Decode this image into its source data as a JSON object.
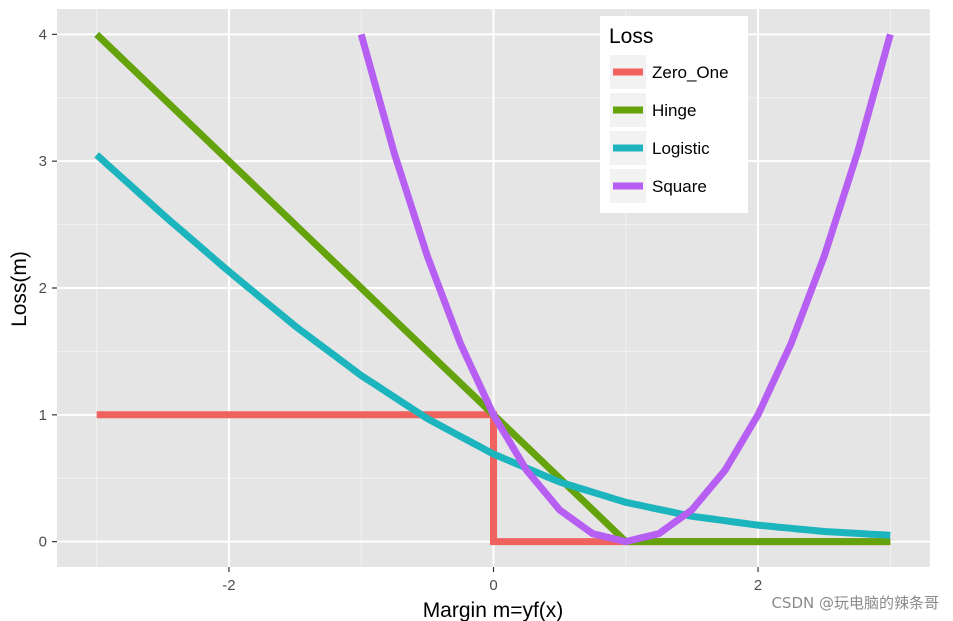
{
  "chart_data": {
    "type": "line",
    "xlabel": "Margin m=yf(x)",
    "ylabel": "Loss(m)",
    "xlim": [
      -3.3,
      3.3
    ],
    "ylim": [
      -0.2,
      4.2
    ],
    "x_ticks": [
      -2,
      0,
      2
    ],
    "x_tick_labels": [
      "-2",
      "0",
      "2"
    ],
    "y_ticks": [
      0,
      1,
      2,
      3,
      4
    ],
    "y_tick_labels": [
      "0",
      "1",
      "2",
      "3",
      "4"
    ],
    "grid": true,
    "legend": {
      "title": "Loss",
      "position": "top-right-inside"
    },
    "series": [
      {
        "name": "Zero_One",
        "color": "#f0625e",
        "x": [
          -3,
          0,
          0,
          3
        ],
        "y": [
          1,
          1,
          0,
          0
        ]
      },
      {
        "name": "Hinge",
        "color": "#64a30c",
        "x": [
          -3,
          1,
          3
        ],
        "y": [
          4,
          0,
          0
        ]
      },
      {
        "name": "Logistic",
        "color": "#1db5bd",
        "x": [
          -3,
          -2.5,
          -2,
          -1.5,
          -1,
          -0.5,
          0,
          0.5,
          1,
          1.5,
          2,
          2.5,
          3
        ],
        "y": [
          3.05,
          2.58,
          2.13,
          1.7,
          1.31,
          0.97,
          0.69,
          0.47,
          0.31,
          0.2,
          0.13,
          0.08,
          0.05
        ]
      },
      {
        "name": "Square",
        "color": "#b65ff2",
        "x": [
          -1,
          -0.75,
          -0.5,
          -0.25,
          0,
          0.25,
          0.5,
          0.75,
          1,
          1.25,
          1.5,
          1.75,
          2,
          2.25,
          2.5,
          2.75,
          3
        ],
        "y": [
          4,
          3.0625,
          2.25,
          1.5625,
          1,
          0.5625,
          0.25,
          0.0625,
          0,
          0.0625,
          0.25,
          0.5625,
          1,
          1.5625,
          2.25,
          3.0625,
          4
        ]
      }
    ]
  },
  "watermark": "CSDN @玩电脑的辣条哥"
}
